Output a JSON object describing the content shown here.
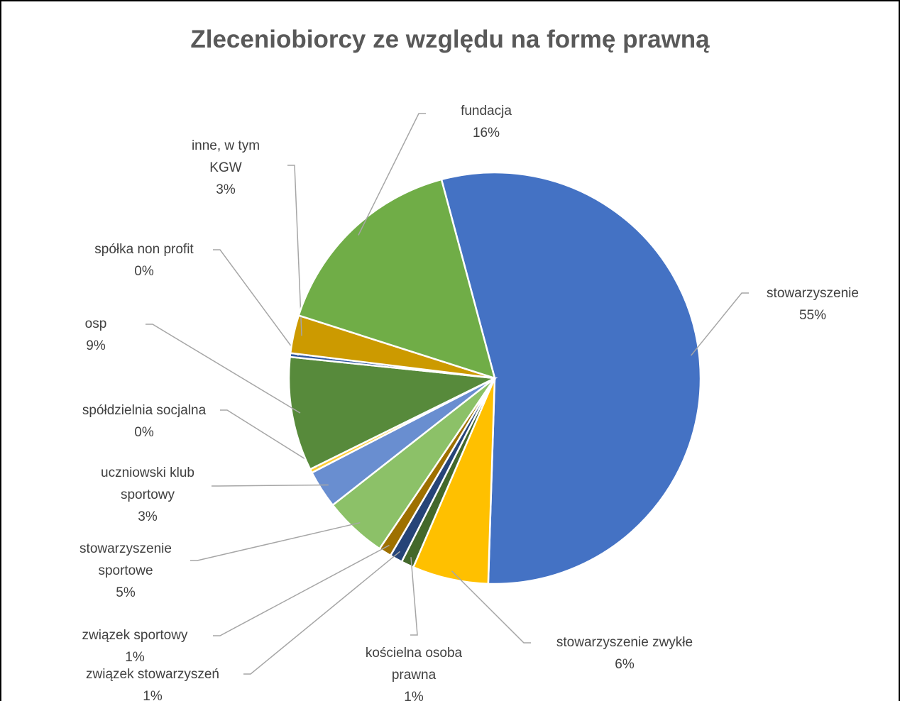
{
  "chart_data": {
    "type": "pie",
    "title": "Zleceniobiorcy ze względu na formę prawną",
    "categories": [
      "stowarzyszenie",
      "stowarzyszenie zwykłe",
      "kościelna osoba prawna",
      "związek stowarzyszeń",
      "związek sportowy",
      "stowarzyszenie sportowe",
      "uczniowski klub sportowy",
      "spółdzielnia socjalna",
      "osp",
      "spółka non profit",
      "inne, w tym KGW",
      "fundacja"
    ],
    "values": [
      55,
      6,
      1,
      1,
      1,
      5,
      3,
      0.3,
      9,
      0.3,
      3,
      16
    ],
    "value_labels": [
      "55%",
      "6%",
      "1%",
      "1%",
      "1%",
      "5%",
      "3%",
      "0%",
      "9%",
      "0%",
      "3%",
      "16%"
    ],
    "colors": [
      "#4472c4",
      "#ffc000",
      "#43682b",
      "#264478",
      "#9e7000",
      "#8cc168",
      "#698ed0",
      "#ffcd33",
      "#578a3b",
      "#335aa1",
      "#cc9a00",
      "#70ad47"
    ]
  }
}
